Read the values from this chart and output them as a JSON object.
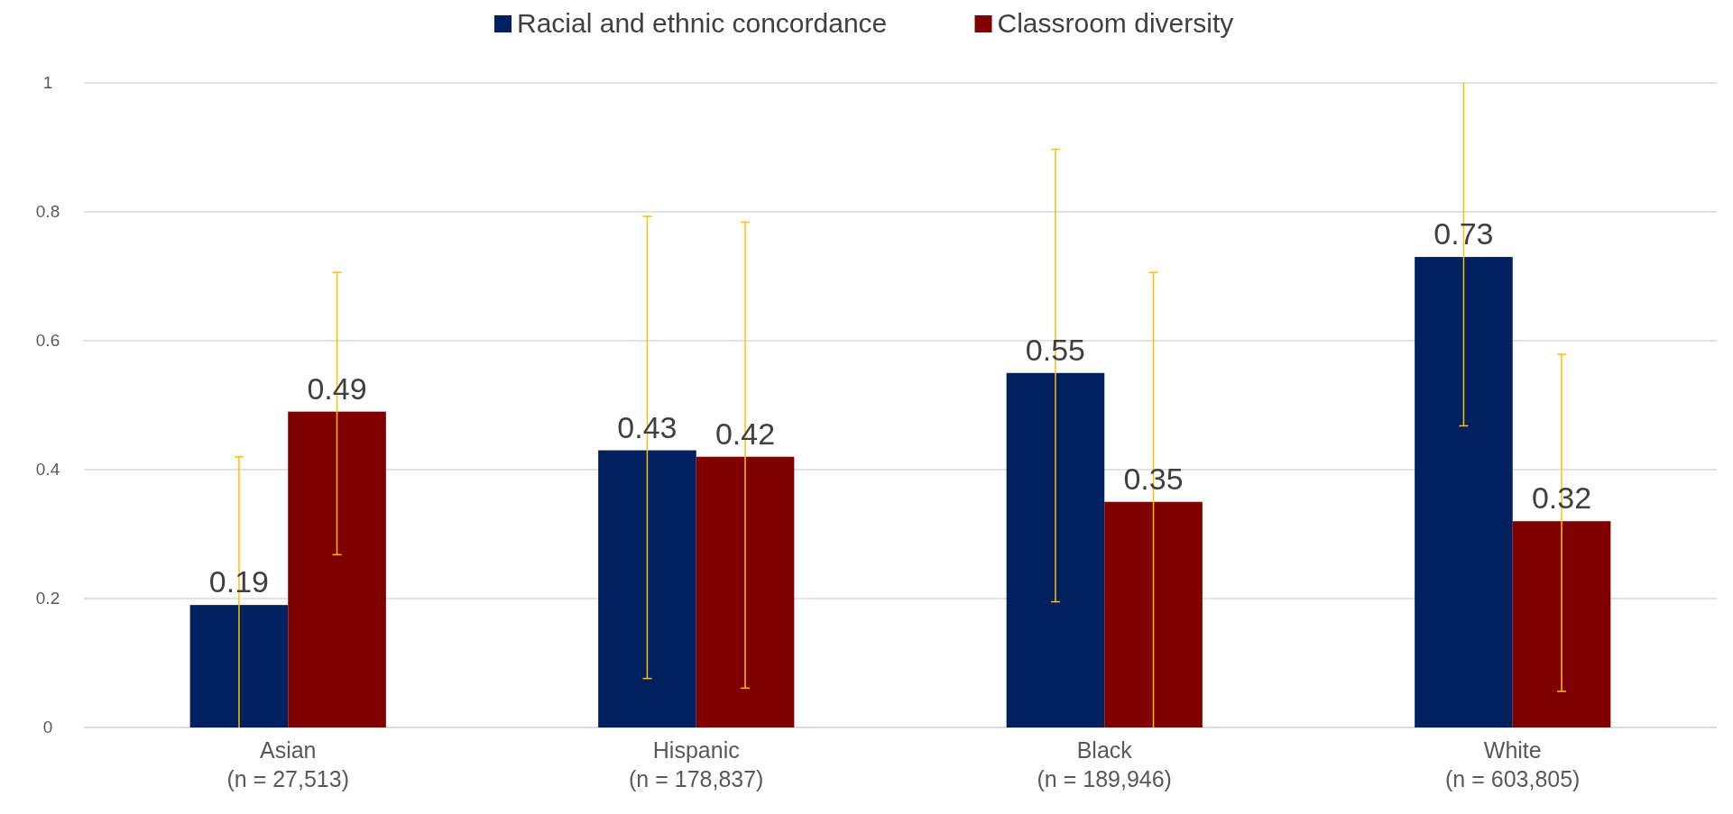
{
  "chart_data": {
    "type": "bar",
    "categories": [
      "Asian\n(n = 27,513)",
      "Hispanic\n(n = 178,837)",
      "Black\n(n = 189,946)",
      "White\n(n = 603,805)"
    ],
    "series": [
      {
        "name": "Racial and ethnic concordance",
        "color": "#002060",
        "values": [
          0.19,
          0.43,
          0.55,
          0.73
        ],
        "errors": [
          [
            0,
            0.42
          ],
          [
            0.076,
            0.793
          ],
          [
            0.195,
            0.897
          ],
          [
            0.468,
            1
          ]
        ]
      },
      {
        "name": "Classroom diversity",
        "color": "#800000",
        "values": [
          0.49,
          0.42,
          0.35,
          0.32
        ],
        "errors": [
          [
            0.268,
            0.706
          ],
          [
            0.061,
            0.784
          ],
          [
            0,
            0.706
          ],
          [
            0.056,
            0.579
          ]
        ]
      }
    ],
    "ylim": [
      0,
      1
    ],
    "yticks": [
      0,
      0.2,
      0.4,
      0.6,
      0.8,
      1
    ],
    "grid": "y",
    "legend": "top",
    "data_labels": true
  }
}
